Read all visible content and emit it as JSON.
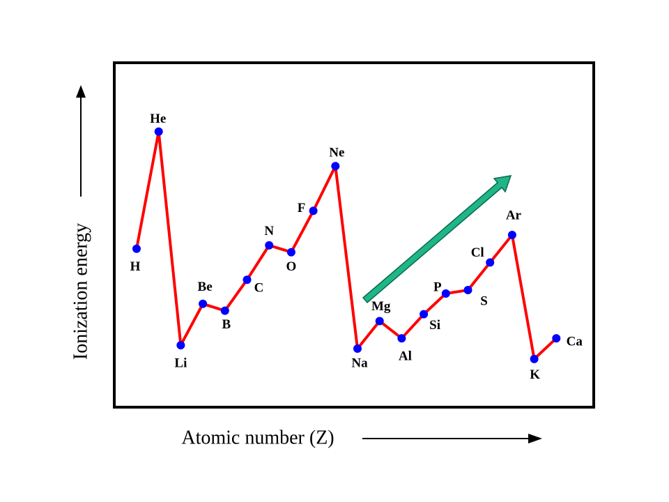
{
  "chart_data": {
    "type": "line",
    "x_label": "Atomic number (Z)",
    "y_label": "Ionization energy",
    "categories": [
      "H",
      "He",
      "Li",
      "Be",
      "B",
      "C",
      "N",
      "O",
      "F",
      "Ne",
      "Na",
      "Mg",
      "Al",
      "Si",
      "P",
      "S",
      "Cl",
      "Ar",
      "K",
      "Ca"
    ],
    "values": [
      46,
      80,
      18,
      30,
      28,
      37,
      47,
      45,
      57,
      70,
      17,
      25,
      20,
      27,
      33,
      34,
      42,
      50,
      14,
      20
    ],
    "ylim": [
      0,
      100
    ],
    "line_color": "#ff0000",
    "marker_color": "#0000ff"
  }
}
